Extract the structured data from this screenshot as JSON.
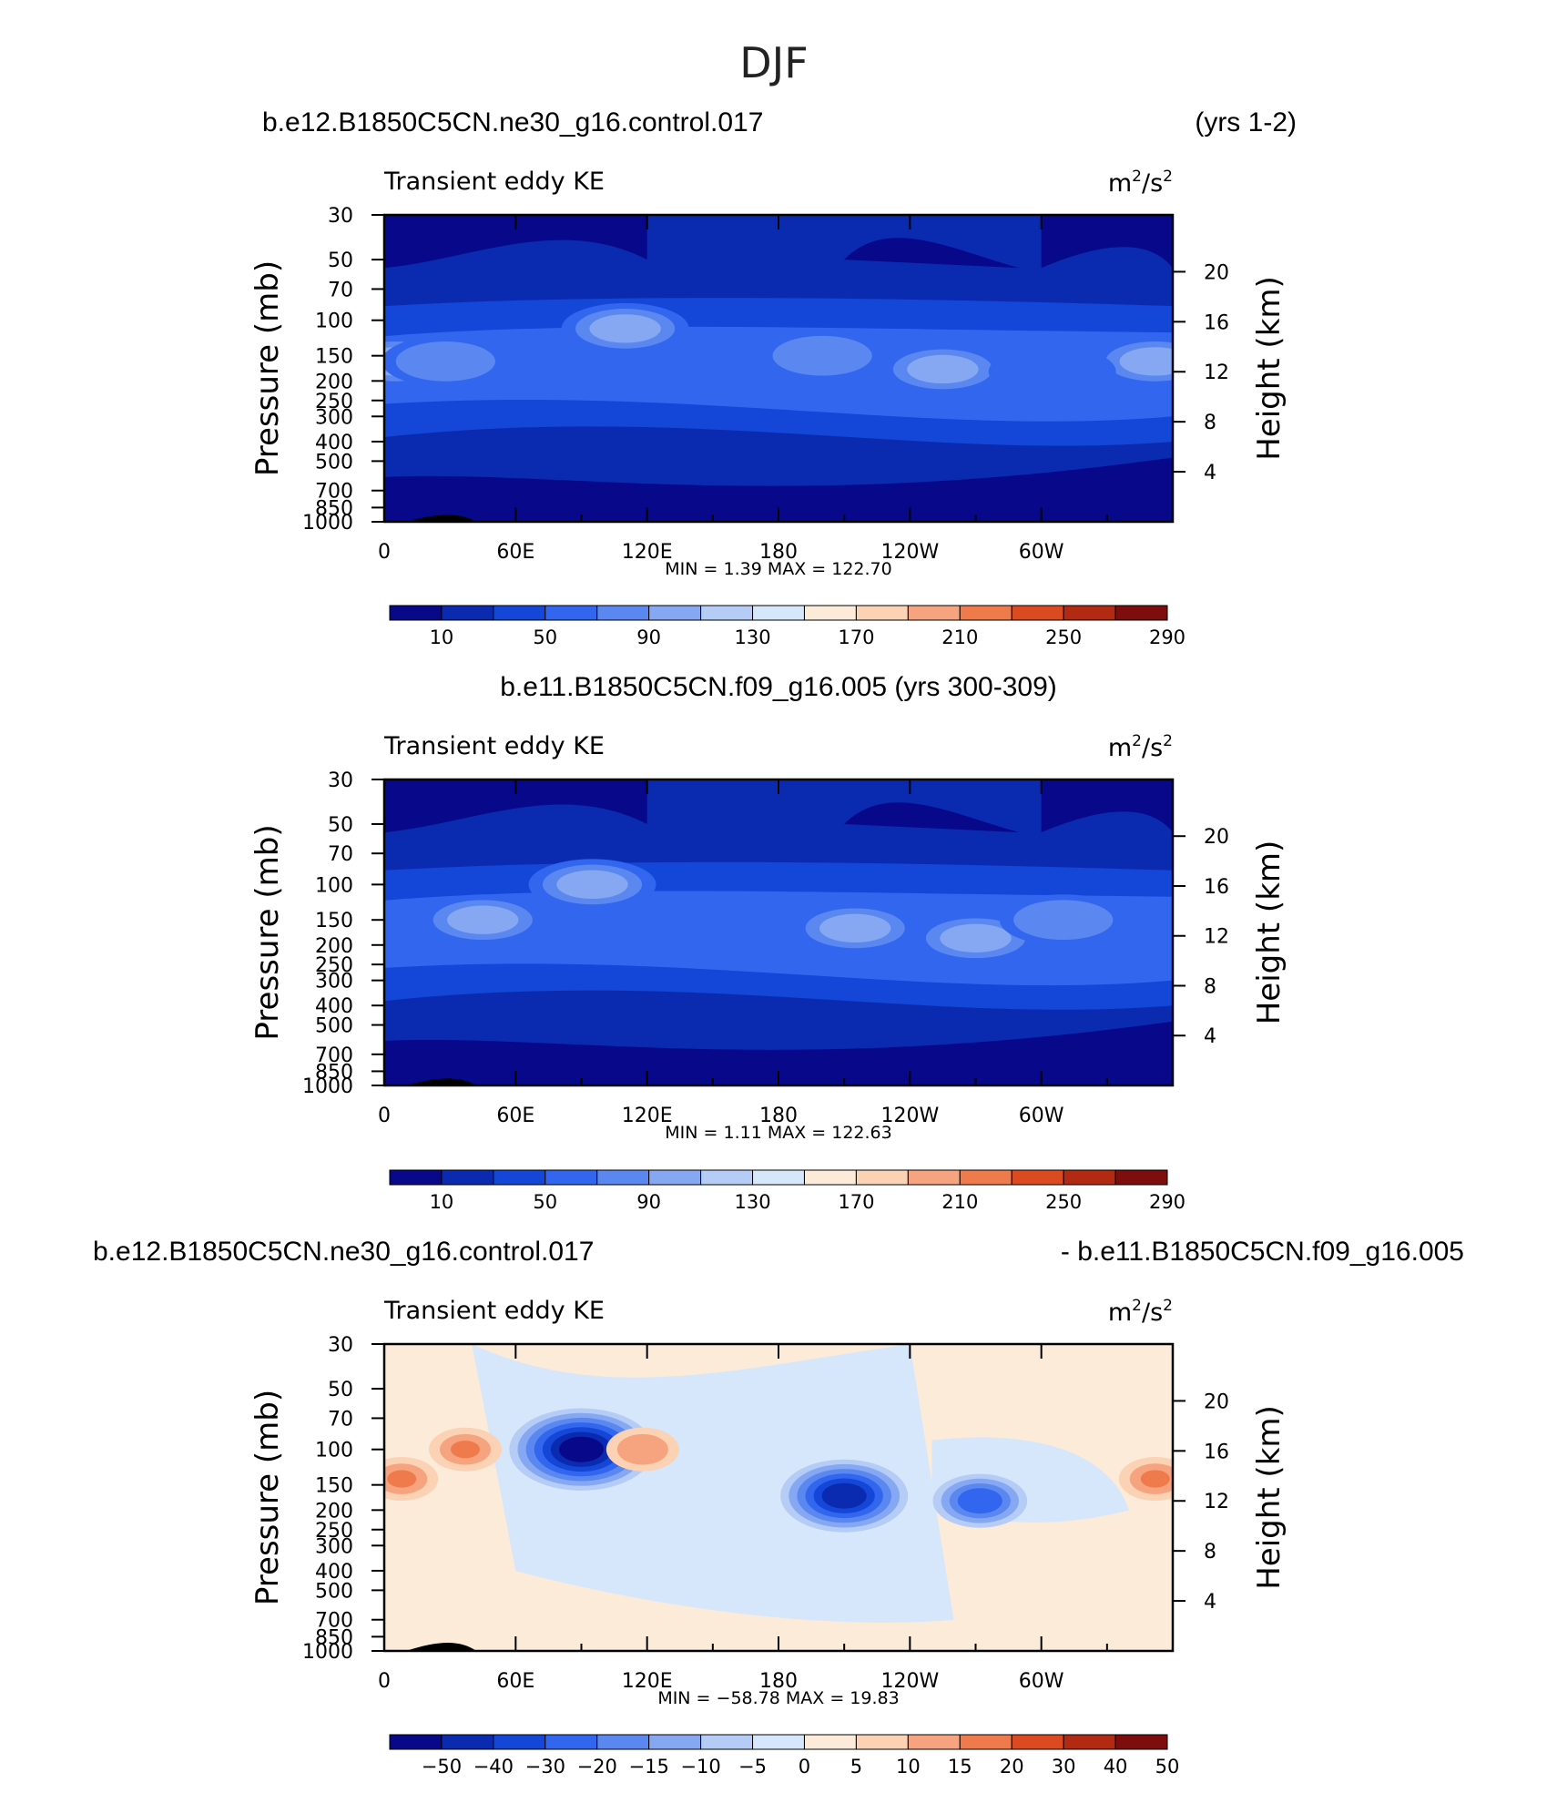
{
  "figure": {
    "title": "DJF"
  },
  "colors": {
    "positive_scale": [
      "#08088a",
      "#0a2bb0",
      "#1446d8",
      "#3366ee",
      "#5a88f0",
      "#86a8f2",
      "#b4ccf6",
      "#d6e6fb",
      "#fdebd9",
      "#fbd2b4",
      "#f6a37f",
      "#ef7a4b",
      "#dc4a22",
      "#b32a12",
      "#7e0d0d"
    ],
    "diff_scale": [
      "#08088a",
      "#0a2bb0",
      "#1446d8",
      "#3366ee",
      "#5a88f0",
      "#86a8f2",
      "#b4ccf6",
      "#d6e6fb",
      "#fdebd9",
      "#fbd2b4",
      "#f6a37f",
      "#ef7a4b",
      "#dc4a22",
      "#b32a12",
      "#7e0d0d"
    ]
  },
  "chart_data": [
    {
      "type": "heatmap",
      "panel": "top",
      "case_title": "b.e12.B1850C5CN.ne30_g16.control.017",
      "years_label": "(yrs 1-2)",
      "variable": "Transient eddy KE",
      "units_base": "m",
      "units_sup1": "2",
      "units_mid": "/s",
      "units_sup2": "2",
      "xlabel": "",
      "ylabel": "Pressure  (mb)",
      "ylabel_right": "Height  (km)",
      "x_ticks": [
        "0",
        "60E",
        "120E",
        "180",
        "120W",
        "60W"
      ],
      "x_values": [
        0,
        60,
        120,
        180,
        240,
        300
      ],
      "x_range": [
        0,
        360
      ],
      "y_ticks": [
        "30",
        "50",
        "70",
        "100",
        "150",
        "200",
        "250",
        "300",
        "400",
        "500",
        "700",
        "850",
        "1000"
      ],
      "y_values": [
        30,
        50,
        70,
        100,
        150,
        200,
        250,
        300,
        400,
        500,
        700,
        850,
        1000
      ],
      "y_range": [
        30,
        1000
      ],
      "right_ticks": [
        "20",
        "16",
        "12",
        "8",
        "4"
      ],
      "right_values": [
        20,
        16,
        12,
        8,
        4
      ],
      "min_label": "MIN =",
      "min_value": "1.39",
      "max_label": "MAX =",
      "max_value": "122.70",
      "colorbar_labels": [
        "10",
        "50",
        "90",
        "130",
        "170",
        "210",
        "250",
        "290"
      ],
      "features": [
        {
          "lon": 5,
          "p": 160,
          "value": 105
        },
        {
          "lon": 28,
          "p": 160,
          "value": 98
        },
        {
          "lon": 110,
          "p": 110,
          "value": 112
        },
        {
          "lon": 200,
          "p": 150,
          "value": 90
        },
        {
          "lon": 255,
          "p": 175,
          "value": 102
        },
        {
          "lon": 352,
          "p": 160,
          "value": 108
        },
        {
          "lon": 305,
          "p": 180,
          "value": 72
        }
      ]
    },
    {
      "type": "heatmap",
      "panel": "middle",
      "case_title": "b.e11.B1850C5CN.f09_g16.005 (yrs 300-309)",
      "variable": "Transient eddy KE",
      "units_base": "m",
      "units_sup1": "2",
      "units_mid": "/s",
      "units_sup2": "2",
      "ylabel": "Pressure  (mb)",
      "ylabel_right": "Height  (km)",
      "x_ticks": [
        "0",
        "60E",
        "120E",
        "180",
        "120W",
        "60W"
      ],
      "x_values": [
        0,
        60,
        120,
        180,
        240,
        300
      ],
      "x_range": [
        0,
        360
      ],
      "y_ticks": [
        "30",
        "50",
        "70",
        "100",
        "150",
        "200",
        "250",
        "300",
        "400",
        "500",
        "700",
        "850",
        "1000"
      ],
      "y_values": [
        30,
        50,
        70,
        100,
        150,
        200,
        250,
        300,
        400,
        500,
        700,
        850,
        1000
      ],
      "y_range": [
        30,
        1000
      ],
      "right_ticks": [
        "20",
        "16",
        "12",
        "8",
        "4"
      ],
      "right_values": [
        20,
        16,
        12,
        8,
        4
      ],
      "min_label": "MIN =",
      "min_value": "1.11",
      "max_label": "MAX =",
      "max_value": "122.63",
      "colorbar_labels": [
        "10",
        "50",
        "90",
        "130",
        "170",
        "210",
        "250",
        "290"
      ],
      "features": [
        {
          "lon": 45,
          "p": 150,
          "value": 100
        },
        {
          "lon": 95,
          "p": 100,
          "value": 115
        },
        {
          "lon": 215,
          "p": 165,
          "value": 108
        },
        {
          "lon": 270,
          "p": 185,
          "value": 112
        },
        {
          "lon": 310,
          "p": 150,
          "value": 96
        }
      ]
    },
    {
      "type": "heatmap",
      "panel": "difference",
      "case_title_left": "b.e12.B1850C5CN.ne30_g16.control.017",
      "case_title_right": "- b.e11.B1850C5CN.f09_g16.005",
      "variable": "Transient eddy KE",
      "units_base": "m",
      "units_sup1": "2",
      "units_mid": "/s",
      "units_sup2": "2",
      "ylabel": "Pressure  (mb)",
      "ylabel_right": "Height  (km)",
      "x_ticks": [
        "0",
        "60E",
        "120E",
        "180",
        "120W",
        "60W"
      ],
      "x_values": [
        0,
        60,
        120,
        180,
        240,
        300
      ],
      "x_range": [
        0,
        360
      ],
      "y_ticks": [
        "30",
        "50",
        "70",
        "100",
        "150",
        "200",
        "250",
        "300",
        "400",
        "500",
        "700",
        "850",
        "1000"
      ],
      "y_values": [
        30,
        50,
        70,
        100,
        150,
        200,
        250,
        300,
        400,
        500,
        700,
        850,
        1000
      ],
      "y_range": [
        30,
        1000
      ],
      "right_ticks": [
        "20",
        "16",
        "12",
        "8",
        "4"
      ],
      "right_values": [
        20,
        16,
        12,
        8,
        4
      ],
      "min_label": "MIN =",
      "min_value": "−58.78",
      "max_label": "MAX =",
      "max_value": "19.83",
      "colorbar_labels": [
        "−50",
        "−40",
        "−30",
        "−20",
        "−15",
        "−10",
        "−5",
        "0",
        "5",
        "10",
        "15",
        "20",
        "30",
        "40",
        "50"
      ],
      "features": [
        {
          "lon": 90,
          "p": 100,
          "value": -58
        },
        {
          "lon": 210,
          "p": 170,
          "value": -40
        },
        {
          "lon": 272,
          "p": 180,
          "value": -28
        },
        {
          "lon": 8,
          "p": 140,
          "value": 19
        },
        {
          "lon": 37,
          "p": 100,
          "value": 17
        },
        {
          "lon": 352,
          "p": 140,
          "value": 18
        },
        {
          "lon": 118,
          "p": 100,
          "value": 10
        }
      ]
    }
  ]
}
